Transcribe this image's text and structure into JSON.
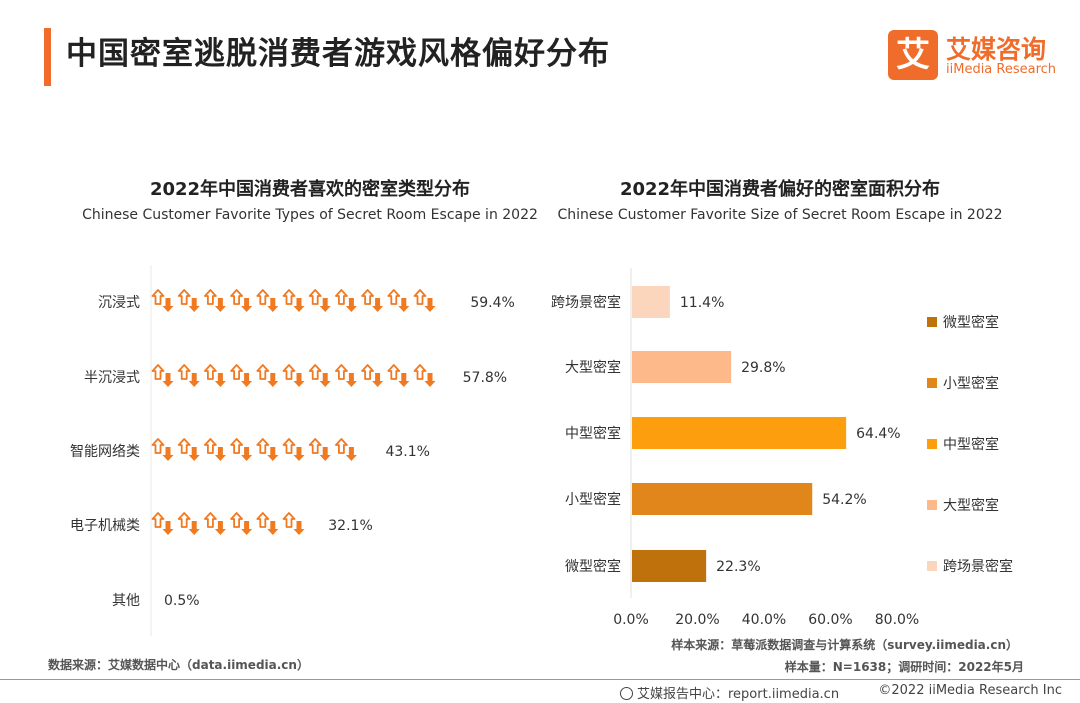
{
  "header": {
    "title": "中国密室逃脱消费者游戏风格偏好分布",
    "logo_glyph": "艾",
    "logo_cn": "艾媒咨询",
    "logo_en": "iiMedia Research"
  },
  "chart_data": [
    {
      "type": "bar",
      "orientation": "horizontal",
      "style": "pictograph",
      "title": "2022年中国消费者喜欢的密室类型分布",
      "subtitle": "Chinese Customer Favorite Types of Secret Room Escape in 2022",
      "categories": [
        "沉浸式",
        "半沉浸式",
        "智能网络类",
        "电子机械类",
        "其他"
      ],
      "values": [
        59.4,
        57.8,
        43.1,
        32.1,
        0.5
      ],
      "labels": [
        "59.4%",
        "57.8%",
        "43.1%",
        "32.1%",
        "0.5%"
      ],
      "color": "#ef7a22"
    },
    {
      "type": "bar",
      "orientation": "horizontal",
      "title": "2022年中国消费者偏好的密室面积分布",
      "subtitle": "Chinese Customer Favorite Size of Secret Room Escape in 2022",
      "categories": [
        "跨场景密室",
        "大型密室",
        "中型密室",
        "小型密室",
        "微型密室"
      ],
      "values": [
        11.4,
        29.8,
        64.4,
        54.2,
        22.3
      ],
      "labels": [
        "11.4%",
        "29.8%",
        "64.4%",
        "54.2%",
        "22.3%"
      ],
      "colors": [
        "#fcd5bd",
        "#fdb989",
        "#fc9e0d",
        "#e0861a",
        "#bf720c"
      ],
      "xlim": [
        0,
        80
      ],
      "xticks": [
        "0.0%",
        "20.0%",
        "40.0%",
        "60.0%",
        "80.0%"
      ],
      "legend": [
        {
          "name": "微型密室",
          "color": "#bf720c"
        },
        {
          "name": "小型密室",
          "color": "#e0861a"
        },
        {
          "name": "中型密室",
          "color": "#fc9e0d"
        },
        {
          "name": "大型密室",
          "color": "#fdb989"
        },
        {
          "name": "跨场景密室",
          "color": "#fcd5bd"
        }
      ],
      "legend_position": "right"
    }
  ],
  "footer": {
    "source_left": "数据来源：艾媒数据中心（data.iimedia.cn）",
    "sample_source": "样本来源：草莓派数据调查与计算系统（survey.iimedia.cn）",
    "sample_info": "样本量：N=1638；调研时间：2022年5月",
    "report_center": "艾媒报告中心：report.iimedia.cn",
    "copyright": "©2022  iiMedia Research  Inc"
  }
}
